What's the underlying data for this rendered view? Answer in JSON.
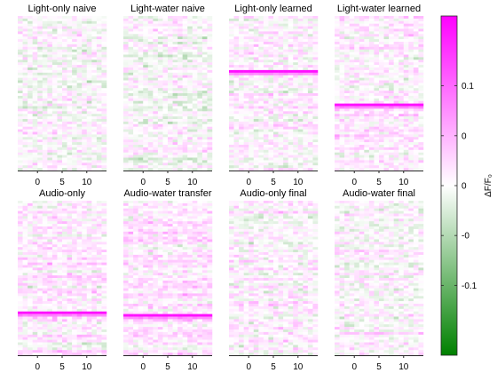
{
  "chart_data": {
    "type": "heatmap",
    "colormap": {
      "stops": [
        "#008000",
        "#ffffff",
        "#ff00ff"
      ],
      "clim": [
        -0.17,
        0.17
      ],
      "label": "ΔF/F₀",
      "ticks": [
        {
          "value": -0.1,
          "label": "-0.1"
        },
        {
          "value": -0.05,
          "label": "-0"
        },
        {
          "value": 0,
          "label": "0"
        },
        {
          "value": 0.05,
          "label": "0"
        },
        {
          "value": 0.1,
          "label": "0.1"
        }
      ]
    },
    "x_ticks": [
      {
        "value": 0,
        "label": "0"
      },
      {
        "value": 5,
        "label": "5"
      },
      {
        "value": 10,
        "label": "10"
      }
    ],
    "x_range": [
      -4,
      14
    ],
    "n_rows": 60,
    "panels": [
      {
        "title": "Light-only naive",
        "bias": 0.0,
        "band_row": null
      },
      {
        "title": "Light-water naive",
        "bias": 0.0,
        "band_row": null
      },
      {
        "title": "Light-only learned",
        "bias": 0.005,
        "band_row": 21
      },
      {
        "title": "Light-water learned",
        "bias": 0.01,
        "band_row": 34
      },
      {
        "title": "Audio-only",
        "bias": 0.015,
        "band_row": 43
      },
      {
        "title": "Audio-water transfer",
        "bias": 0.015,
        "band_row": 44
      },
      {
        "title": "Audio-only final",
        "bias": 0.005,
        "band_row": null
      },
      {
        "title": "Audio-water final",
        "bias": 0.005,
        "band_row": null
      }
    ]
  }
}
